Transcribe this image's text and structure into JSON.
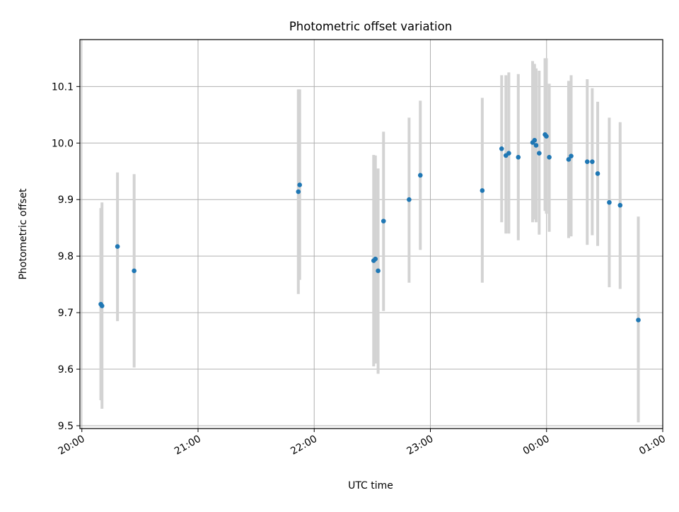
{
  "chart_data": {
    "type": "scatter",
    "title": "Photometric offset variation",
    "xlabel": "UTC time",
    "ylabel": "Photometric offset",
    "x_unit": "minutes since 20:00 UTC",
    "xlim": [
      -1,
      300
    ],
    "ylim": [
      9.495,
      10.183
    ],
    "x_ticks": [
      {
        "value": 0,
        "label": "20:00"
      },
      {
        "value": 60,
        "label": "21:00"
      },
      {
        "value": 120,
        "label": "22:00"
      },
      {
        "value": 180,
        "label": "23:00"
      },
      {
        "value": 240,
        "label": "00:00"
      },
      {
        "value": 300,
        "label": "01:00"
      }
    ],
    "y_ticks": [
      {
        "value": 9.5,
        "label": "9.5"
      },
      {
        "value": 9.6,
        "label": "9.6"
      },
      {
        "value": 9.7,
        "label": "9.7"
      },
      {
        "value": 9.8,
        "label": "9.8"
      },
      {
        "value": 9.9,
        "label": "9.9"
      },
      {
        "value": 10.0,
        "label": "10.0"
      },
      {
        "value": 10.1,
        "label": "10.1"
      }
    ],
    "grid": true,
    "colors": {
      "points": "#1f77b4",
      "errorbars": "#d3d3d3",
      "grid": "#b0b0b0"
    },
    "series": [
      {
        "points": [
          {
            "x": 9.8,
            "y": 9.715,
            "ylow": 9.545,
            "yhigh": 9.885
          },
          {
            "x": 10.4,
            "y": 9.712,
            "ylow": 9.53,
            "yhigh": 9.895
          },
          {
            "x": 18.4,
            "y": 9.817,
            "ylow": 9.685,
            "yhigh": 9.948
          },
          {
            "x": 27.0,
            "y": 9.774,
            "ylow": 9.603,
            "yhigh": 9.945
          },
          {
            "x": 111.8,
            "y": 9.914,
            "ylow": 9.733,
            "yhigh": 10.095
          },
          {
            "x": 112.5,
            "y": 9.926,
            "ylow": 9.758,
            "yhigh": 10.095
          },
          {
            "x": 150.7,
            "y": 9.792,
            "ylow": 9.605,
            "yhigh": 9.979
          },
          {
            "x": 151.6,
            "y": 9.795,
            "ylow": 9.61,
            "yhigh": 9.978
          },
          {
            "x": 153.0,
            "y": 9.774,
            "ylow": 9.592,
            "yhigh": 9.955
          },
          {
            "x": 155.8,
            "y": 9.862,
            "ylow": 9.703,
            "yhigh": 10.02
          },
          {
            "x": 169.0,
            "y": 9.9,
            "ylow": 9.753,
            "yhigh": 10.045
          },
          {
            "x": 174.8,
            "y": 9.943,
            "ylow": 9.811,
            "yhigh": 10.075
          },
          {
            "x": 206.8,
            "y": 9.916,
            "ylow": 9.753,
            "yhigh": 10.08
          },
          {
            "x": 216.8,
            "y": 9.99,
            "ylow": 9.86,
            "yhigh": 10.12
          },
          {
            "x": 219.0,
            "y": 9.978,
            "ylow": 9.84,
            "yhigh": 10.12
          },
          {
            "x": 220.5,
            "y": 9.982,
            "ylow": 9.84,
            "yhigh": 10.125
          },
          {
            "x": 225.4,
            "y": 9.975,
            "ylow": 9.828,
            "yhigh": 10.122
          },
          {
            "x": 232.8,
            "y": 10.001,
            "ylow": 9.86,
            "yhigh": 10.145
          },
          {
            "x": 233.8,
            "y": 10.005,
            "ylow": 9.865,
            "yhigh": 10.14
          },
          {
            "x": 234.6,
            "y": 9.996,
            "ylow": 9.86,
            "yhigh": 10.132
          },
          {
            "x": 236.2,
            "y": 9.982,
            "ylow": 9.838,
            "yhigh": 10.128
          },
          {
            "x": 239.2,
            "y": 10.015,
            "ylow": 9.88,
            "yhigh": 10.15
          },
          {
            "x": 239.9,
            "y": 10.012,
            "ylow": 9.875,
            "yhigh": 10.15
          },
          {
            "x": 241.4,
            "y": 9.975,
            "ylow": 9.843,
            "yhigh": 10.105
          },
          {
            "x": 251.4,
            "y": 9.971,
            "ylow": 9.832,
            "yhigh": 10.11
          },
          {
            "x": 252.7,
            "y": 9.977,
            "ylow": 9.835,
            "yhigh": 10.12
          },
          {
            "x": 261.0,
            "y": 9.967,
            "ylow": 9.82,
            "yhigh": 10.113
          },
          {
            "x": 263.6,
            "y": 9.967,
            "ylow": 9.837,
            "yhigh": 10.097
          },
          {
            "x": 266.4,
            "y": 9.946,
            "ylow": 9.818,
            "yhigh": 10.073
          },
          {
            "x": 272.4,
            "y": 9.895,
            "ylow": 9.745,
            "yhigh": 10.045
          },
          {
            "x": 278.0,
            "y": 9.89,
            "ylow": 9.742,
            "yhigh": 10.037
          },
          {
            "x": 287.4,
            "y": 9.687,
            "ylow": 9.506,
            "yhigh": 9.87
          }
        ]
      }
    ]
  }
}
